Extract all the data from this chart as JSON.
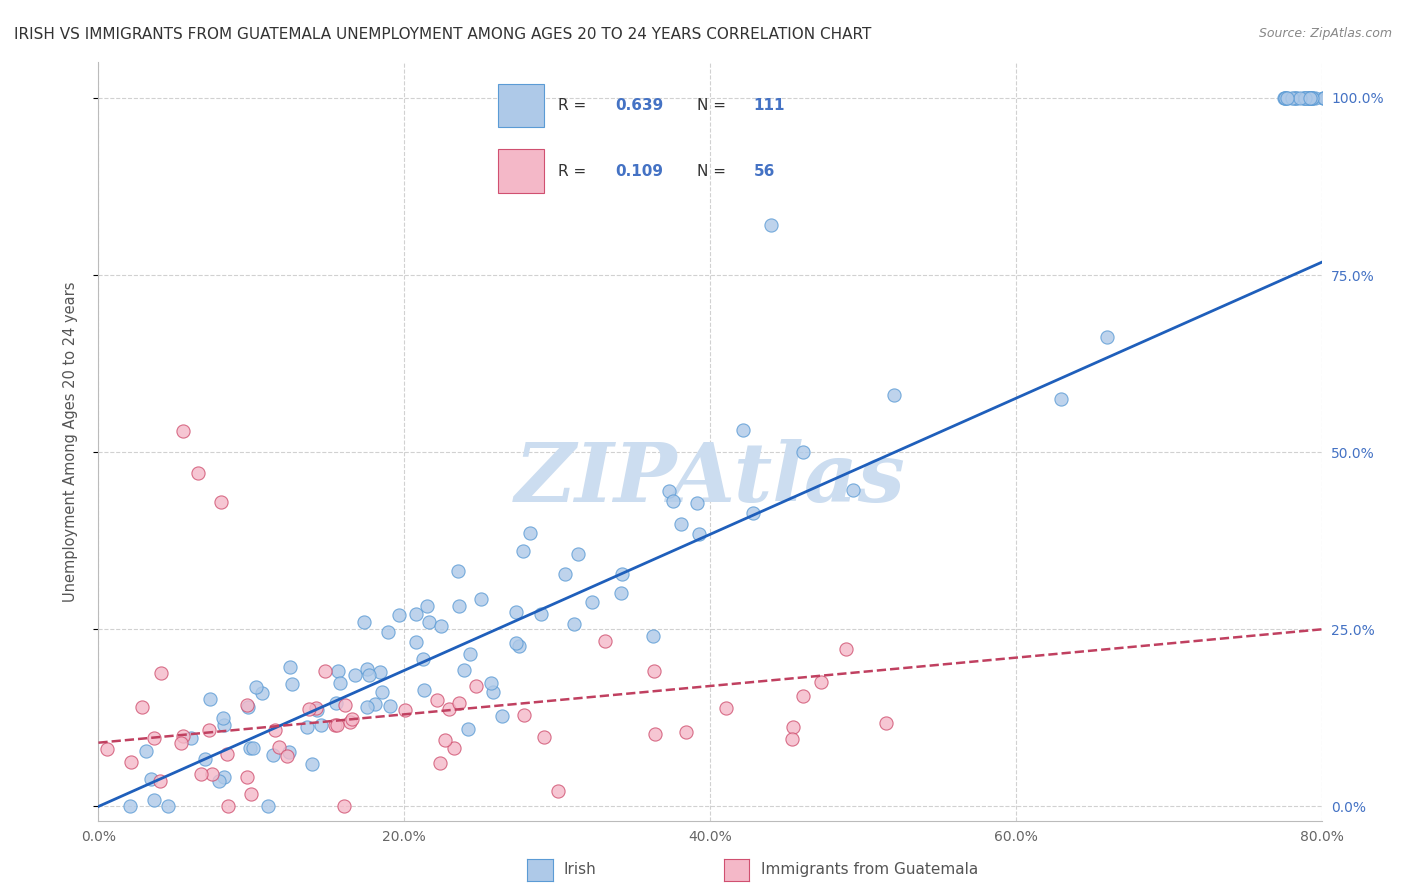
{
  "title": "IRISH VS IMMIGRANTS FROM GUATEMALA UNEMPLOYMENT AMONG AGES 20 TO 24 YEARS CORRELATION CHART",
  "source": "Source: ZipAtlas.com",
  "ylabel": "Unemployment Among Ages 20 to 24 years",
  "xlim": [
    0.0,
    0.8
  ],
  "ylim": [
    -0.02,
    1.05
  ],
  "irish_color": "#aec9e8",
  "irish_edge": "#5b9bd5",
  "guat_color": "#f4b8c8",
  "guat_edge": "#d05070",
  "irish_R": "0.639",
  "irish_N": "111",
  "guat_R": "0.109",
  "guat_N": "56",
  "irish_line_color": "#1f5fbb",
  "guat_line_color": "#c04060",
  "watermark": "ZIPAtlas",
  "watermark_color": "#ccddf0",
  "xtick_vals": [
    0.0,
    0.2,
    0.4,
    0.6,
    0.8
  ],
  "xtick_labels": [
    "0.0%",
    "20.0%",
    "40.0%",
    "60.0%",
    "80.0%"
  ],
  "ytick_vals": [
    0.0,
    0.25,
    0.5,
    0.75,
    1.0
  ],
  "ytick_labels": [
    "0.0%",
    "25.0%",
    "50.0%",
    "75.0%",
    "100.0%"
  ],
  "ytick_color": "#4472c4",
  "background_color": "#ffffff",
  "grid_color": "#cccccc",
  "title_fontsize": 11,
  "source_fontsize": 9,
  "legend_r_n_color": "#4472c4",
  "legend_text_color": "#333333",
  "axis_tick_color": "#666666"
}
